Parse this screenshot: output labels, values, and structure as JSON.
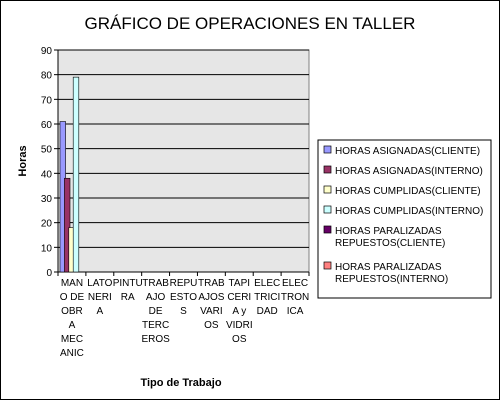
{
  "chart_data": {
    "type": "bar",
    "title": "GRÁFICO DE OPERACIONES EN TALLER",
    "xlabel": "Tipo de Trabajo",
    "ylabel": "Horas",
    "ylim": [
      0,
      90
    ],
    "yticks": [
      0,
      10,
      20,
      30,
      40,
      50,
      60,
      70,
      80,
      90
    ],
    "grid": true,
    "legend_position": "right",
    "categories": [
      "MANO DE OBRA MECANIC",
      "LATONERIA",
      "PINTURA",
      "TRABAJO DE TERCEROS",
      "REPUESTOS",
      "TRABAJOS VARIOS",
      "TAPICERIA y VIDRIOS",
      "ELECTRICIDAD",
      "ELECTRONICA"
    ],
    "category_lines": [
      [
        "MAN",
        "O DE",
        "OBR",
        "A",
        "MEC",
        "ANIC"
      ],
      [
        "LATO",
        "NERI",
        "A"
      ],
      [
        "PINTU",
        "RA"
      ],
      [
        "TRAB",
        "AJO",
        "DE",
        "TERC",
        "EROS"
      ],
      [
        "REPU",
        "ESTO",
        "S"
      ],
      [
        "TRAB",
        "AJOS",
        "VARI",
        "OS"
      ],
      [
        "TAPI",
        "CERI",
        "A y",
        "VIDRI",
        "OS"
      ],
      [
        "ELEC",
        "TRICI",
        "DAD"
      ],
      [
        "ELEC",
        "TRON",
        "ICA"
      ]
    ],
    "series": [
      {
        "name": "HORAS ASIGNADAS(CLIENTE)",
        "color": "#9999ff",
        "values": [
          61,
          0,
          0,
          0,
          0,
          0,
          0,
          0,
          0
        ]
      },
      {
        "name": "HORAS ASIGNADAS(INTERNO)",
        "color": "#993366",
        "values": [
          38,
          0,
          0,
          0,
          0,
          0,
          0,
          0,
          0
        ]
      },
      {
        "name": "HORAS CUMPLIDAS(CLIENTE)",
        "color": "#ffffcc",
        "values": [
          18,
          0,
          0,
          0,
          0,
          0,
          0,
          0,
          0
        ]
      },
      {
        "name": "HORAS CUMPLIDAS(INTERNO)",
        "color": "#ccffff",
        "values": [
          79,
          0,
          0,
          0,
          0,
          0,
          0,
          0,
          0
        ]
      },
      {
        "name": "HORAS PARALIZADAS REPUESTOS(CLIENTE)",
        "color": "#660066",
        "values": [
          0,
          0,
          0,
          0,
          0,
          0,
          0,
          0,
          0
        ]
      },
      {
        "name": "HORAS PARALIZADAS REPUESTOS(INTERNO)",
        "color": "#ff8080",
        "values": [
          0,
          0,
          0,
          0,
          0,
          0,
          0,
          0,
          0
        ]
      }
    ],
    "legend_lines": [
      [
        "HORAS ASIGNADAS(CLIENTE)"
      ],
      [
        "HORAS ASIGNADAS(INTERNO)"
      ],
      [
        "HORAS CUMPLIDAS(CLIENTE)"
      ],
      [
        "HORAS CUMPLIDAS(INTERNO)"
      ],
      [
        "HORAS PARALIZADAS",
        "REPUESTOS(CLIENTE)"
      ],
      [
        "HORAS PARALIZADAS",
        "REPUESTOS(INTERNO)"
      ]
    ]
  }
}
